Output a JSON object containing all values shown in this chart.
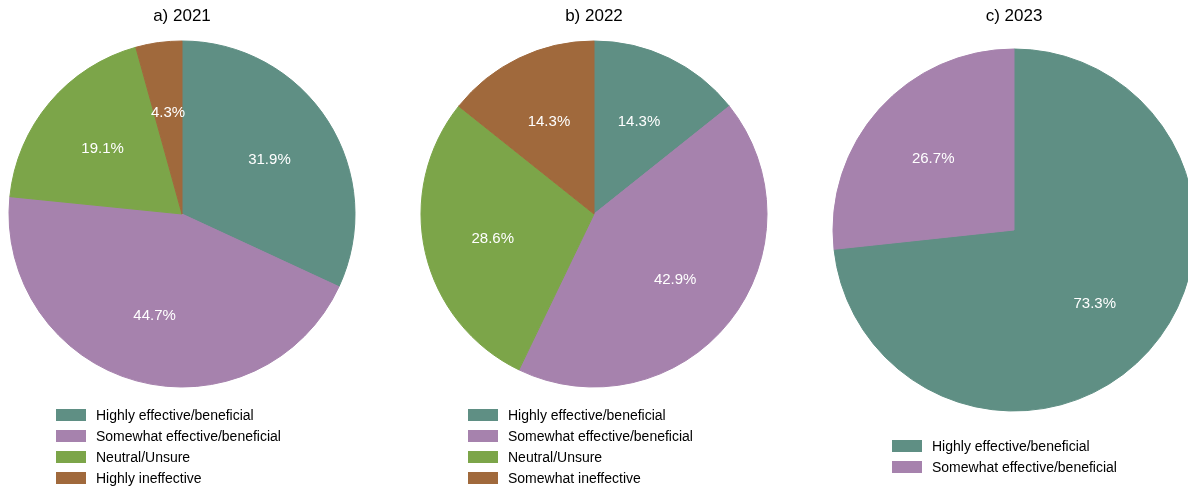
{
  "chart_data": [
    {
      "type": "pie",
      "title": "a) 2021",
      "categories": [
        "Highly effective/beneficial",
        "Somewhat effective/beneficial",
        "Neutral/Unsure",
        "Highly ineffective"
      ],
      "values": [
        31.9,
        44.7,
        19.1,
        4.3
      ],
      "value_labels": [
        "31.9%",
        "44.7%",
        "19.1%",
        "4.3%"
      ],
      "colors": [
        "#5f8f84",
        "#a682ad",
        "#7ca549",
        "#a0693c"
      ],
      "legend": "bottom"
    },
    {
      "type": "pie",
      "title": "b) 2022",
      "categories": [
        "Highly effective/beneficial",
        "Somewhat effective/beneficial",
        "Neutral/Unsure",
        "Somewhat ineffective"
      ],
      "values": [
        14.3,
        42.9,
        28.6,
        14.3
      ],
      "value_labels": [
        "14.3%",
        "42.9%",
        "28.6%",
        "14.3%"
      ],
      "colors": [
        "#5f8f84",
        "#a682ad",
        "#7ca549",
        "#a0693c"
      ],
      "legend": "bottom"
    },
    {
      "type": "pie",
      "title": "c) 2023",
      "categories": [
        "Highly effective/beneficial",
        "Somewhat effective/beneficial"
      ],
      "values": [
        73.3,
        26.7
      ],
      "value_labels": [
        "73.3%",
        "26.7%"
      ],
      "colors": [
        "#5f8f84",
        "#a682ad"
      ],
      "legend": "bottom"
    }
  ]
}
